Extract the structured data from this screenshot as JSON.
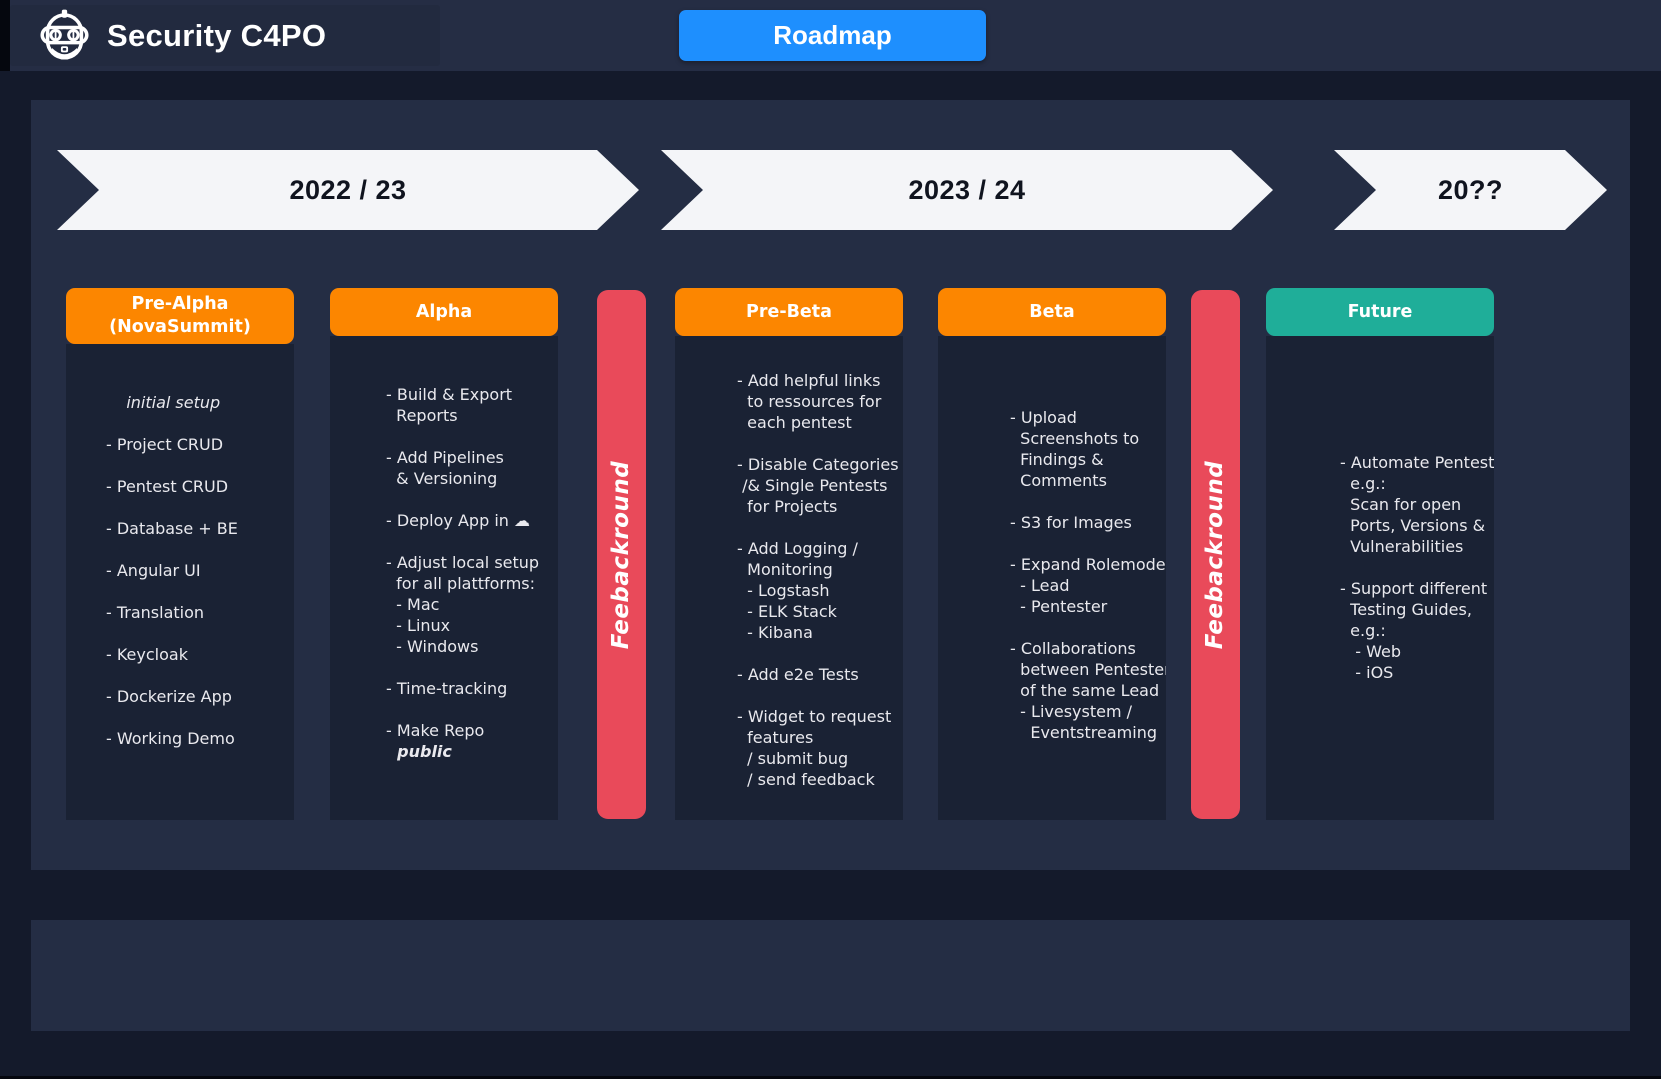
{
  "header": {
    "title": "Security C4PO",
    "roadmap_button_label": "Roadmap"
  },
  "timeline": {
    "arrows": [
      {
        "label": "2022 / 23"
      },
      {
        "label": "2023 / 24"
      },
      {
        "label": "20??"
      }
    ]
  },
  "board": {
    "columns": [
      {
        "key": "pre-alpha",
        "header": "Pre-Alpha\n(NovaSummit)",
        "header_color": "#FC8600",
        "lines": [
          {
            "t": "    initial setup",
            "s": "i"
          },
          {
            "t": ""
          },
          {
            "t": "- Project CRUD"
          },
          {
            "t": ""
          },
          {
            "t": "- Pentest CRUD"
          },
          {
            "t": ""
          },
          {
            "t": "- Database + BE"
          },
          {
            "t": ""
          },
          {
            "t": "- Angular UI"
          },
          {
            "t": ""
          },
          {
            "t": "- Translation"
          },
          {
            "t": ""
          },
          {
            "t": "- Keycloak"
          },
          {
            "t": ""
          },
          {
            "t": "- Dockerize App"
          },
          {
            "t": ""
          },
          {
            "t": "- Working Demo"
          }
        ]
      },
      {
        "key": "alpha",
        "header": "Alpha",
        "header_color": "#FC8600",
        "lines": [
          {
            "t": "- Build & Export"
          },
          {
            "t": "  Reports"
          },
          {
            "t": ""
          },
          {
            "t": "- Add Pipelines"
          },
          {
            "t": "  & Versioning"
          },
          {
            "t": ""
          },
          {
            "t": "- Deploy App in ☁"
          },
          {
            "t": ""
          },
          {
            "t": "- Adjust local setup"
          },
          {
            "t": "  for all plattforms:"
          },
          {
            "t": "  - Mac"
          },
          {
            "t": "  - Linux"
          },
          {
            "t": "  - Windows"
          },
          {
            "t": ""
          },
          {
            "t": "- Time-tracking"
          },
          {
            "t": ""
          },
          {
            "t": "- Make Repo"
          },
          {
            "t": "  public",
            "s": "bi"
          }
        ]
      },
      {
        "key": "pre-beta",
        "header": "Pre-Beta",
        "header_color": "#FC8600",
        "lines": [
          {
            "t": "- Add helpful links"
          },
          {
            "t": "  to ressources for"
          },
          {
            "t": "  each pentest"
          },
          {
            "t": ""
          },
          {
            "t": "- Disable Categories"
          },
          {
            "t": " /& Single Pentests"
          },
          {
            "t": "  for Projects"
          },
          {
            "t": ""
          },
          {
            "t": "- Add Logging /"
          },
          {
            "t": "  Monitoring"
          },
          {
            "t": "  - Logstash"
          },
          {
            "t": "  - ELK Stack"
          },
          {
            "t": "  - Kibana"
          },
          {
            "t": ""
          },
          {
            "t": "- Add e2e Tests"
          },
          {
            "t": ""
          },
          {
            "t": "- Widget to request"
          },
          {
            "t": "  features"
          },
          {
            "t": "  / submit bug"
          },
          {
            "t": "  / send feedback"
          }
        ]
      },
      {
        "key": "beta",
        "header": "Beta",
        "header_color": "#FC8600",
        "lines": [
          {
            "t": "- Upload"
          },
          {
            "t": "  Screenshots to"
          },
          {
            "t": "  Findings &"
          },
          {
            "t": "  Comments"
          },
          {
            "t": ""
          },
          {
            "t": "- S3 for Images"
          },
          {
            "t": ""
          },
          {
            "t": "- Expand Rolemodel"
          },
          {
            "t": "  - Lead"
          },
          {
            "t": "  - Pentester"
          },
          {
            "t": ""
          },
          {
            "t": "- Collaborations"
          },
          {
            "t": "  between Pentesters"
          },
          {
            "t": "  of the same Lead"
          },
          {
            "t": "  - Livesystem /"
          },
          {
            "t": "    Eventstreaming"
          }
        ]
      },
      {
        "key": "future",
        "header": "Future",
        "header_color": "#1FAE99",
        "lines": [
          {
            "t": "- Automate Pentests"
          },
          {
            "t": "  e.g.:"
          },
          {
            "t": "  Scan for open"
          },
          {
            "t": "  Ports, Versions &"
          },
          {
            "t": "  Vulnerabilities"
          },
          {
            "t": ""
          },
          {
            "t": "- Support different"
          },
          {
            "t": "  Testing Guides,"
          },
          {
            "t": "  e.g.:"
          },
          {
            "t": "   - Web"
          },
          {
            "t": "   - iOS"
          }
        ]
      }
    ],
    "feedback_bars": [
      {
        "label": "Feebackround",
        "color": "#E94A5A"
      },
      {
        "label": "Feebackround",
        "color": "#E94A5A"
      }
    ]
  },
  "colors": {
    "accent_orange": "#FC8600",
    "accent_teal": "#1FAE99",
    "accent_red": "#E94A5A",
    "accent_blue": "#1E8FFE",
    "arrow_bg": "#F4F5F8",
    "panel_bg": "#242D44",
    "card_bg": "#1A2234",
    "page_bg": "#141A2B",
    "header_bg": "#252D44"
  },
  "icons": {
    "logo": "robot-icon",
    "cloud": "cloud-icon"
  }
}
